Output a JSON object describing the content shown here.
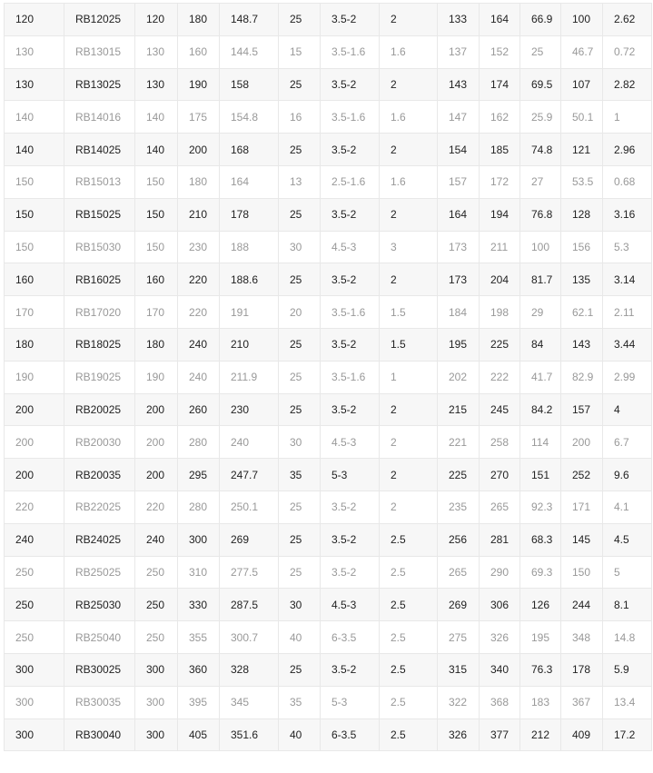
{
  "colors": {
    "odd_row_bg": "#f7f7f7",
    "even_row_bg": "#ffffff",
    "odd_text": "#222222",
    "even_text": "#999999",
    "border": "#e8e8e8"
  },
  "rows": [
    [
      "120",
      "RB12025",
      "120",
      "180",
      "148.7",
      "25",
      "3.5-2",
      "2",
      "133",
      "164",
      "66.9",
      "100",
      "2.62"
    ],
    [
      "130",
      "RB13015",
      "130",
      "160",
      "144.5",
      "15",
      "3.5-1.6",
      "1.6",
      "137",
      "152",
      "25",
      "46.7",
      "0.72"
    ],
    [
      "130",
      "RB13025",
      "130",
      "190",
      "158",
      "25",
      "3.5-2",
      "2",
      "143",
      "174",
      "69.5",
      "107",
      "2.82"
    ],
    [
      "140",
      "RB14016",
      "140",
      "175",
      "154.8",
      "16",
      "3.5-1.6",
      "1.6",
      "147",
      "162",
      "25.9",
      "50.1",
      "1"
    ],
    [
      "140",
      "RB14025",
      "140",
      "200",
      "168",
      "25",
      "3.5-2",
      "2",
      "154",
      "185",
      "74.8",
      "121",
      "2.96"
    ],
    [
      "150",
      "RB15013",
      "150",
      "180",
      "164",
      "13",
      "2.5-1.6",
      "1.6",
      "157",
      "172",
      "27",
      "53.5",
      "0.68"
    ],
    [
      "150",
      "RB15025",
      "150",
      "210",
      "178",
      "25",
      "3.5-2",
      "2",
      "164",
      "194",
      "76.8",
      "128",
      "3.16"
    ],
    [
      "150",
      "RB15030",
      "150",
      "230",
      "188",
      "30",
      "4.5-3",
      "3",
      "173",
      "211",
      "100",
      "156",
      "5.3"
    ],
    [
      "160",
      "RB16025",
      "160",
      "220",
      "188.6",
      "25",
      "3.5-2",
      "2",
      "173",
      "204",
      "81.7",
      "135",
      "3.14"
    ],
    [
      "170",
      "RB17020",
      "170",
      "220",
      "191",
      "20",
      "3.5-1.6",
      "1.5",
      "184",
      "198",
      "29",
      "62.1",
      "2.11"
    ],
    [
      "180",
      "RB18025",
      "180",
      "240",
      "210",
      "25",
      "3.5-2",
      "1.5",
      "195",
      "225",
      "84",
      "143",
      "3.44"
    ],
    [
      "190",
      "RB19025",
      "190",
      "240",
      "211.9",
      "25",
      "3.5-1.6",
      "1",
      "202",
      "222",
      "41.7",
      "82.9",
      "2.99"
    ],
    [
      "200",
      "RB20025",
      "200",
      "260",
      "230",
      "25",
      "3.5-2",
      "2",
      "215",
      "245",
      "84.2",
      "157",
      "4"
    ],
    [
      "200",
      "RB20030",
      "200",
      "280",
      "240",
      "30",
      "4.5-3",
      "2",
      "221",
      "258",
      "114",
      "200",
      "6.7"
    ],
    [
      "200",
      "RB20035",
      "200",
      "295",
      "247.7",
      "35",
      "5-3",
      "2",
      "225",
      "270",
      "151",
      "252",
      "9.6"
    ],
    [
      "220",
      "RB22025",
      "220",
      "280",
      "250.1",
      "25",
      "3.5-2",
      "2",
      "235",
      "265",
      "92.3",
      "171",
      "4.1"
    ],
    [
      "240",
      "RB24025",
      "240",
      "300",
      "269",
      "25",
      "3.5-2",
      "2.5",
      "256",
      "281",
      "68.3",
      "145",
      "4.5"
    ],
    [
      "250",
      "RB25025",
      "250",
      "310",
      "277.5",
      "25",
      "3.5-2",
      "2.5",
      "265",
      "290",
      "69.3",
      "150",
      "5"
    ],
    [
      "250",
      "RB25030",
      "250",
      "330",
      "287.5",
      "30",
      "4.5-3",
      "2.5",
      "269",
      "306",
      "126",
      "244",
      "8.1"
    ],
    [
      "250",
      "RB25040",
      "250",
      "355",
      "300.7",
      "40",
      "6-3.5",
      "2.5",
      "275",
      "326",
      "195",
      "348",
      "14.8"
    ],
    [
      "300",
      "RB30025",
      "300",
      "360",
      "328",
      "25",
      "3.5-2",
      "2.5",
      "315",
      "340",
      "76.3",
      "178",
      "5.9"
    ],
    [
      "300",
      "RB30035",
      "300",
      "395",
      "345",
      "35",
      "5-3",
      "2.5",
      "322",
      "368",
      "183",
      "367",
      "13.4"
    ],
    [
      "300",
      "RB30040",
      "300",
      "405",
      "351.6",
      "40",
      "6-3.5",
      "2.5",
      "326",
      "377",
      "212",
      "409",
      "17.2"
    ]
  ]
}
